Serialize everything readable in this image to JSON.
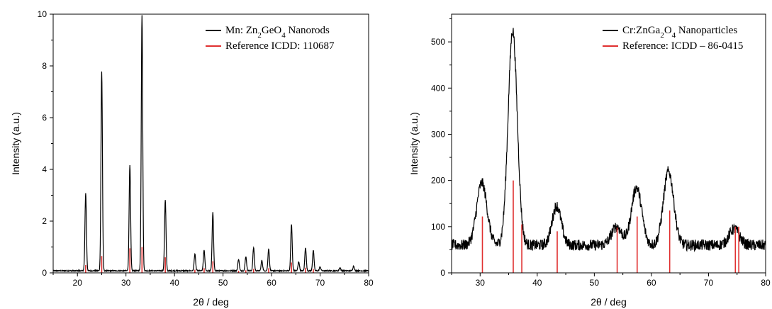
{
  "chart_data": [
    {
      "type": "line",
      "title": "",
      "xlabel": "2θ / deg",
      "ylabel": "Intensity (a.u.)",
      "xlim": [
        15,
        80
      ],
      "ylim": [
        0,
        10
      ],
      "xticks": [
        "20",
        "30",
        "40",
        "50",
        "60",
        "70",
        "80"
      ],
      "yticks": [
        "0",
        "2",
        "4",
        "6",
        "8",
        "10"
      ],
      "legend_position": "top-right",
      "series": [
        {
          "name": "Mn: Zn2GeO4 Nanorods",
          "legend_parts": [
            {
              "text": "Mn: Zn",
              "sub": false
            },
            {
              "text": "2",
              "sub": true
            },
            {
              "text": "GeO",
              "sub": false
            },
            {
              "text": "4",
              "sub": true
            },
            {
              "text": " Nanorods",
              "sub": false
            }
          ],
          "color": "#000000",
          "kind": "pattern",
          "baseline": 0.08,
          "noise": 0.02,
          "peaks": [
            {
              "x": 21.7,
              "h": 3.0,
              "w": 0.15
            },
            {
              "x": 25.0,
              "h": 7.7,
              "w": 0.15
            },
            {
              "x": 30.8,
              "h": 4.1,
              "w": 0.15
            },
            {
              "x": 33.3,
              "h": 9.9,
              "w": 0.15
            },
            {
              "x": 38.1,
              "h": 2.75,
              "w": 0.15
            },
            {
              "x": 44.2,
              "h": 0.65,
              "w": 0.15
            },
            {
              "x": 46.1,
              "h": 0.8,
              "w": 0.15
            },
            {
              "x": 47.9,
              "h": 2.25,
              "w": 0.15
            },
            {
              "x": 53.2,
              "h": 0.45,
              "w": 0.15
            },
            {
              "x": 54.7,
              "h": 0.55,
              "w": 0.15
            },
            {
              "x": 56.3,
              "h": 0.9,
              "w": 0.15
            },
            {
              "x": 58.0,
              "h": 0.4,
              "w": 0.15
            },
            {
              "x": 59.4,
              "h": 0.85,
              "w": 0.15
            },
            {
              "x": 64.1,
              "h": 1.8,
              "w": 0.15
            },
            {
              "x": 65.6,
              "h": 0.35,
              "w": 0.15
            },
            {
              "x": 67.0,
              "h": 0.9,
              "w": 0.15
            },
            {
              "x": 68.6,
              "h": 0.8,
              "w": 0.15
            },
            {
              "x": 70.0,
              "h": 0.15,
              "w": 0.15
            },
            {
              "x": 74.1,
              "h": 0.12,
              "w": 0.15
            },
            {
              "x": 76.9,
              "h": 0.18,
              "w": 0.15
            }
          ]
        },
        {
          "name": "Reference ICDD: 110687",
          "legend_parts": [
            {
              "text": "Reference ICDD: 110687",
              "sub": false
            }
          ],
          "color": "#e03030",
          "kind": "sticks",
          "sticks": [
            {
              "x": 21.7,
              "y": 0.3
            },
            {
              "x": 25.0,
              "y": 0.65
            },
            {
              "x": 30.8,
              "y": 0.95
            },
            {
              "x": 33.3,
              "y": 1.0
            },
            {
              "x": 38.1,
              "y": 0.6
            },
            {
              "x": 44.2,
              "y": 0.12
            },
            {
              "x": 46.1,
              "y": 0.18
            },
            {
              "x": 47.9,
              "y": 0.45
            },
            {
              "x": 53.2,
              "y": 0.08
            },
            {
              "x": 54.7,
              "y": 0.1
            },
            {
              "x": 56.3,
              "y": 0.15
            },
            {
              "x": 59.4,
              "y": 0.18
            },
            {
              "x": 64.1,
              "y": 0.4
            },
            {
              "x": 67.0,
              "y": 0.2
            },
            {
              "x": 68.6,
              "y": 0.15
            }
          ]
        }
      ]
    },
    {
      "type": "line",
      "title": "",
      "xlabel": "2θ / deg",
      "ylabel": "Intensity (a.u.)",
      "xlim": [
        25,
        80
      ],
      "ylim": [
        0,
        560
      ],
      "xticks": [
        "30",
        "40",
        "50",
        "60",
        "70",
        "80"
      ],
      "yticks": [
        "0",
        "100",
        "200",
        "300",
        "400",
        "500"
      ],
      "legend_position": "top-right",
      "series": [
        {
          "name": "Cr:ZnGa2O4 Nanoparticles",
          "legend_parts": [
            {
              "text": "Cr:ZnGa",
              "sub": false
            },
            {
              "text": "2",
              "sub": true
            },
            {
              "text": "O",
              "sub": false
            },
            {
              "text": "4",
              "sub": true
            },
            {
              "text": " Nanoparticles",
              "sub": false
            }
          ],
          "color": "#000000",
          "kind": "pattern",
          "baseline": 60,
          "noise": 12,
          "peaks": [
            {
              "x": 30.3,
              "h": 135,
              "w": 0.9
            },
            {
              "x": 35.7,
              "h": 465,
              "w": 0.8
            },
            {
              "x": 43.4,
              "h": 85,
              "w": 0.8
            },
            {
              "x": 53.9,
              "h": 40,
              "w": 0.9
            },
            {
              "x": 57.4,
              "h": 125,
              "w": 0.9
            },
            {
              "x": 63.0,
              "h": 160,
              "w": 0.9
            },
            {
              "x": 74.5,
              "h": 35,
              "w": 0.9
            }
          ]
        },
        {
          "name": "Reference: ICDD – 86-0415",
          "legend_parts": [
            {
              "text": "Reference: ICDD – 86-0415",
              "sub": false
            }
          ],
          "color": "#e03030",
          "kind": "sticks",
          "sticks": [
            {
              "x": 30.4,
              "y": 122
            },
            {
              "x": 35.8,
              "y": 200
            },
            {
              "x": 37.3,
              "y": 105
            },
            {
              "x": 43.5,
              "y": 90
            },
            {
              "x": 54.0,
              "y": 98
            },
            {
              "x": 57.5,
              "y": 122
            },
            {
              "x": 63.2,
              "y": 135
            },
            {
              "x": 74.7,
              "y": 100
            },
            {
              "x": 75.3,
              "y": 100
            }
          ]
        }
      ]
    }
  ]
}
